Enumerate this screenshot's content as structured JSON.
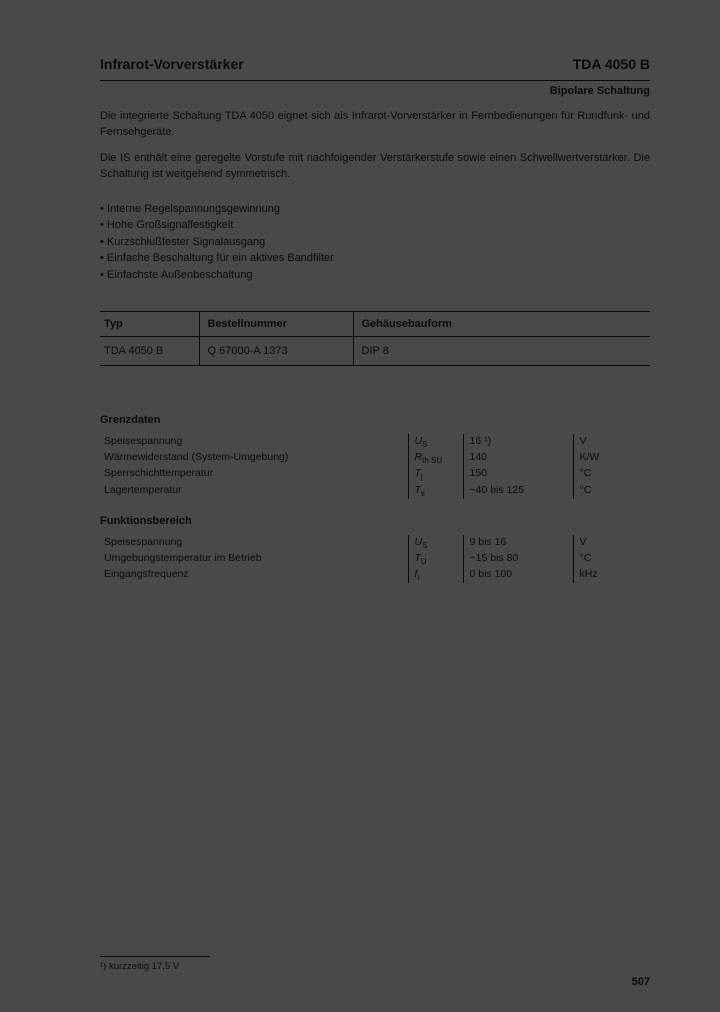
{
  "header": {
    "left_title": "Infrarot-Vorverstärker",
    "right_title": "TDA 4050 B",
    "subheading": "Bipolare Schaltung"
  },
  "intro": {
    "p1": "Die integrierte Schaltung TDA 4050 eignet sich als Infrarot-Vorverstärker in Fernbedienungen für Rundfunk- und Fernsehgeräte.",
    "p2": "Die IS enthält eine geregelte Vorstufe mit nachfolgender Verstärkerstufe sowie einen Schwellwertverstärker. Die Schaltung ist weitgehend symmetrisch."
  },
  "features": [
    "Interne Regelspannungsgewinnung",
    "Hohe Großsignalfestigkeit",
    "Kurzschlußfester Signalausgang",
    "Einfache Beschaltung für ein aktives Bandfilter",
    "Einfachste Außenbeschaltung"
  ],
  "type_table": {
    "headers": [
      "Typ",
      "Bestellnummer",
      "Gehäusebauform"
    ],
    "row": [
      "TDA 4050 B",
      "Q 67000-A 1373",
      "DIP 8"
    ]
  },
  "grenzdaten": {
    "heading": "Grenzdaten",
    "rows": [
      {
        "name": "Speisespannung",
        "sym": "U",
        "sub": "S",
        "val": "16 ¹)",
        "unit": "V"
      },
      {
        "name": "Wärmewiderstand (System-Umgebung)",
        "sym": "R",
        "sub": "th SU",
        "val": "140",
        "unit": "K/W"
      },
      {
        "name": "Sperrschichttemperatur",
        "sym": "T",
        "sub": "j",
        "val": "150",
        "unit": "°C"
      },
      {
        "name": "Lagertemperatur",
        "sym": "T",
        "sub": "s",
        "val": "−40 bis 125",
        "unit": "°C"
      }
    ]
  },
  "funktionsbereich": {
    "heading": "Funktionsbereich",
    "rows": [
      {
        "name": "Speisespannung",
        "sym": "U",
        "sub": "S",
        "val": "9 bis 16",
        "unit": "V"
      },
      {
        "name": "Umgebungstemperatur im Betrieb",
        "sym": "T",
        "sub": "U",
        "val": "−15 bis 80",
        "unit": "°C"
      },
      {
        "name": "Eingangsfrequenz",
        "sym": "f",
        "sub": "i",
        "val": "0 bis 100",
        "unit": "kHz"
      }
    ]
  },
  "footnote": "¹) kurzzeitig 17,5 V",
  "page_number": "507",
  "colors": {
    "page_bg": "#494949",
    "text": "#0a0a0a",
    "rule": "#0a0a0a"
  }
}
